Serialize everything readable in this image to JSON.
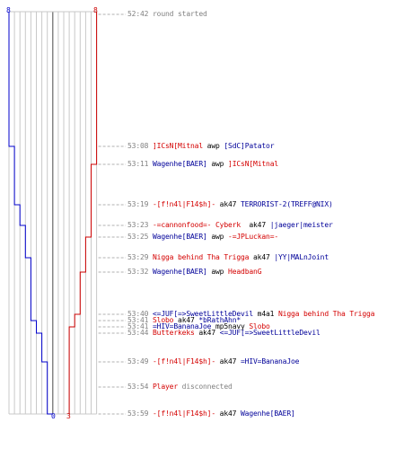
{
  "scoreboard": {
    "team_ct": {
      "color": "#0000cc"
    },
    "team_t": {
      "color": "#cc0000"
    },
    "top_score_ct": "8",
    "top_score_t": "8",
    "bottom_score_ct": "0",
    "bottom_score_t": "3"
  },
  "events": [
    {
      "time": "52:42",
      "parts": [
        {
          "t": "round started",
          "c": "grey"
        }
      ]
    },
    {
      "time": "53:08",
      "parts": [
        {
          "t": "]ICsN[Mitnal",
          "c": "red"
        },
        {
          "t": " awp ",
          "c": "black"
        },
        {
          "t": "[SdC]Patator",
          "c": "blue"
        }
      ]
    },
    {
      "time": "53:11",
      "parts": [
        {
          "t": "Wagenhe[BAER]",
          "c": "blue"
        },
        {
          "t": " awp ",
          "c": "black"
        },
        {
          "t": "]ICsN[Mitnal",
          "c": "red"
        }
      ]
    },
    {
      "time": "53:19",
      "parts": [
        {
          "t": "-[f!n4l|F14$h]-",
          "c": "red"
        },
        {
          "t": " ak47 ",
          "c": "black"
        },
        {
          "t": "TERRORIST-2(TREFF@NIX)",
          "c": "blue"
        }
      ]
    },
    {
      "time": "53:23",
      "parts": [
        {
          "t": "-=cannonfood=- Cyberk",
          "c": "red"
        },
        {
          "t": "  ak47 ",
          "c": "black"
        },
        {
          "t": "|jaeger|meister",
          "c": "blue"
        }
      ]
    },
    {
      "time": "53:25",
      "parts": [
        {
          "t": "Wagenhe[BAER]",
          "c": "blue"
        },
        {
          "t": " awp ",
          "c": "black"
        },
        {
          "t": "-=JPLuckan=-",
          "c": "red"
        }
      ]
    },
    {
      "time": "53:29",
      "parts": [
        {
          "t": "Nigga behind Tha Trigga",
          "c": "red"
        },
        {
          "t": " ak47 ",
          "c": "black"
        },
        {
          "t": "|YY|MALnJoint",
          "c": "blue"
        }
      ]
    },
    {
      "time": "53:32",
      "parts": [
        {
          "t": "Wagenhe[BAER]",
          "c": "blue"
        },
        {
          "t": " awp ",
          "c": "black"
        },
        {
          "t": "HeadbanG",
          "c": "red"
        }
      ]
    },
    {
      "time": "53:40",
      "parts": [
        {
          "t": "<=JUF[=>SweetLittleDevil",
          "c": "blue"
        },
        {
          "t": " m4a1 ",
          "c": "black"
        },
        {
          "t": "Nigga behind Tha Trigga",
          "c": "red"
        }
      ]
    },
    {
      "time": "53:41",
      "parts": [
        {
          "t": "Slobo",
          "c": "red"
        },
        {
          "t": " ak47 ",
          "c": "black"
        },
        {
          "t": "*bRathAhn*",
          "c": "blue"
        }
      ]
    },
    {
      "time": "53:41",
      "parts": [
        {
          "t": "=HIV=BananaJoe",
          "c": "blue"
        },
        {
          "t": " mp5navy ",
          "c": "black"
        },
        {
          "t": "Slobo",
          "c": "red"
        }
      ]
    },
    {
      "time": "53:44",
      "parts": [
        {
          "t": "Butterkeks",
          "c": "red"
        },
        {
          "t": " ak47 ",
          "c": "black"
        },
        {
          "t": "<=JUF[=>SweetLittleDevil",
          "c": "blue"
        }
      ]
    },
    {
      "time": "53:49",
      "parts": [
        {
          "t": "-[f!n4l|F14$h]-",
          "c": "red"
        },
        {
          "t": " ak47 ",
          "c": "black"
        },
        {
          "t": "=HIV=BananaJoe",
          "c": "blue"
        }
      ]
    },
    {
      "time": "53:54",
      "parts": [
        {
          "t": "Player",
          "c": "red"
        },
        {
          "t": " disconnected",
          "c": "grey"
        }
      ]
    },
    {
      "time": "53:59",
      "parts": [
        {
          "t": "-[f!n4l|F14$h]-",
          "c": "red"
        },
        {
          "t": " ak47 ",
          "c": "black"
        },
        {
          "t": "Wagenhe[BAER]",
          "c": "blue"
        }
      ]
    }
  ]
}
